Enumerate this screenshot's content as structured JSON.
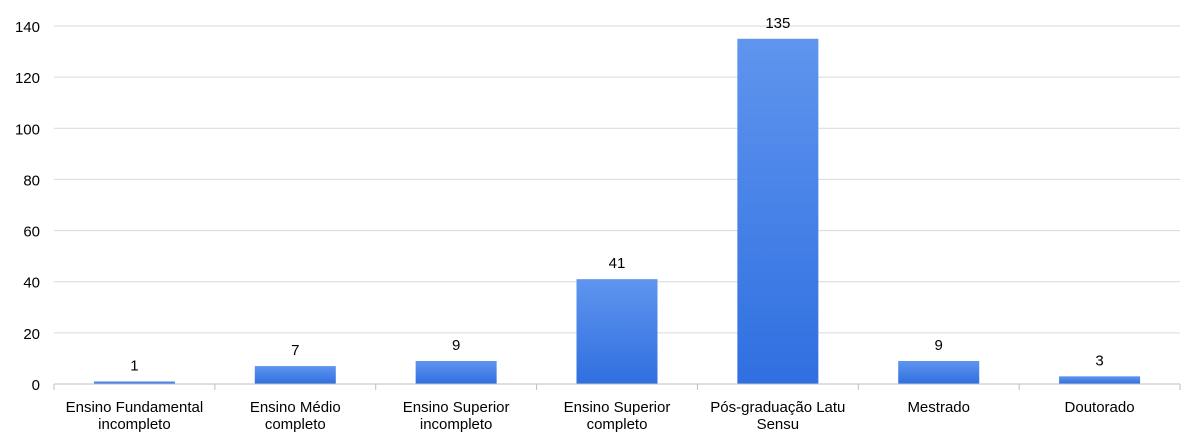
{
  "chart_data": {
    "type": "bar",
    "title": "",
    "xlabel": "",
    "ylabel": "",
    "categories": [
      [
        "Ensino Fundamental",
        "incompleto"
      ],
      [
        "Ensino Médio",
        "completo"
      ],
      [
        "Ensino Superior",
        "incompleto"
      ],
      [
        "Ensino Superior",
        "completo"
      ],
      [
        "Pós-graduação Latu",
        "Sensu"
      ],
      [
        "Mestrado"
      ],
      [
        "Doutorado"
      ]
    ],
    "values": [
      1,
      7,
      9,
      41,
      135,
      9,
      3
    ],
    "ylim": [
      0,
      140
    ],
    "yticks": [
      0,
      20,
      40,
      60,
      80,
      100,
      120,
      140
    ],
    "grid": true,
    "legend": "none",
    "colors": {
      "bar_top": "#5f95ee",
      "bar_bottom": "#2f6fe0",
      "grid": "#d9d9d9",
      "axis": "#bfbfbf"
    }
  }
}
